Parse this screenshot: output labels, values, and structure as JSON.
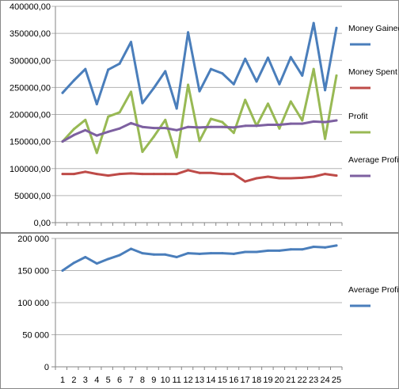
{
  "charts": [
    {
      "type": "line",
      "ylim": [
        0,
        400000
      ],
      "y_tick_labels": [
        "0,00",
        "50000,00",
        "100000,00",
        "150000,00",
        "200000,00",
        "250000,00",
        "300000,00",
        "350000,00",
        "400000,00"
      ],
      "grid": true,
      "legend_position": "right",
      "x": [
        1,
        2,
        3,
        4,
        5,
        6,
        7,
        8,
        9,
        10,
        11,
        12,
        13,
        14,
        15,
        16,
        17,
        18,
        19,
        20,
        21,
        22,
        23,
        24,
        25
      ],
      "series": [
        {
          "name": "Money Gained",
          "color": "#4a7ebb",
          "values": [
            240000,
            263000,
            284000,
            219000,
            283000,
            294000,
            334000,
            221000,
            249000,
            280000,
            211000,
            352000,
            243000,
            284000,
            276000,
            256000,
            303000,
            261000,
            305000,
            256000,
            306000,
            272000,
            369000,
            245000,
            360000
          ]
        },
        {
          "name": "Money Spent",
          "color": "#be4b48",
          "values": [
            90000,
            90000,
            94000,
            90000,
            87000,
            90000,
            91000,
            90000,
            90000,
            90000,
            90000,
            97000,
            92000,
            92000,
            90000,
            90000,
            76000,
            82000,
            85000,
            82000,
            82000,
            83000,
            85000,
            90000,
            87000
          ]
        },
        {
          "name": "Profit",
          "color": "#98b954",
          "values": [
            150000,
            173000,
            190000,
            129000,
            196000,
            204000,
            242000,
            131000,
            159000,
            190000,
            121000,
            255000,
            151000,
            192000,
            186000,
            166000,
            227000,
            179000,
            220000,
            174000,
            224000,
            189000,
            284000,
            155000,
            272000
          ]
        },
        {
          "name": "Average Profit",
          "color": "#7d60a0",
          "values": [
            150000,
            162000,
            171000,
            161000,
            168000,
            174000,
            184000,
            177000,
            175000,
            175000,
            171000,
            177000,
            176000,
            177000,
            177000,
            176000,
            179000,
            179000,
            181000,
            181000,
            183000,
            183000,
            187000,
            186000,
            189000
          ]
        }
      ]
    },
    {
      "type": "line",
      "ylim": [
        0,
        200000
      ],
      "y_tick_labels": [
        "0",
        "50 000",
        "100 000",
        "150 000",
        "200 000"
      ],
      "grid": true,
      "legend_position": "right",
      "x_tick_labels": [
        "1",
        "2",
        "3",
        "4",
        "5",
        "6",
        "7",
        "8",
        "9",
        "10",
        "11",
        "12",
        "13",
        "14",
        "15",
        "16",
        "17",
        "18",
        "19",
        "20",
        "21",
        "22",
        "23",
        "24",
        "25"
      ],
      "series": [
        {
          "name": "Average Profit",
          "color": "#4a7ebb",
          "values": [
            150000,
            162000,
            171000,
            161000,
            168000,
            174000,
            184000,
            177000,
            175000,
            175000,
            171000,
            177000,
            176000,
            177000,
            177000,
            176000,
            179000,
            179000,
            181000,
            181000,
            183000,
            183000,
            187000,
            186000,
            189000
          ]
        }
      ]
    }
  ]
}
